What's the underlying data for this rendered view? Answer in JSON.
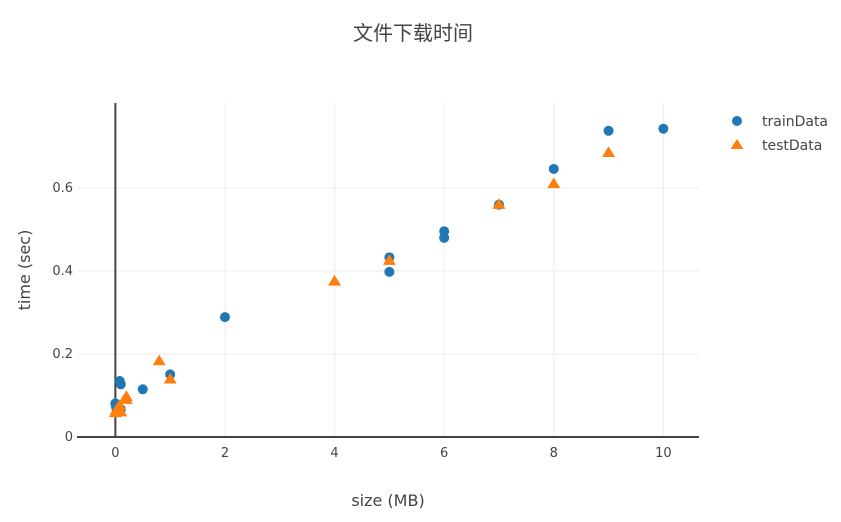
{
  "chart_data": {
    "type": "scatter",
    "title": "文件下载时间",
    "xlabel": "size (MB)",
    "ylabel": "time (sec)",
    "xlim": [
      -0.7,
      10.65
    ],
    "ylim": [
      0,
      0.805
    ],
    "x_ticks": [
      0,
      2,
      4,
      6,
      8,
      10
    ],
    "y_ticks": [
      0,
      0.2,
      0.4,
      0.6
    ],
    "x_tick_labels": [
      "0",
      "2",
      "4",
      "6",
      "8",
      "10"
    ],
    "y_tick_labels": [
      "0",
      "0.2",
      "0.4",
      "0.6"
    ],
    "grid": true,
    "legend_position": "top-right",
    "series": [
      {
        "name": "trainData",
        "marker": "circle",
        "color": "#1f77b4",
        "points": [
          {
            "x": 0.0,
            "y": 0.081
          },
          {
            "x": 0.01,
            "y": 0.074
          },
          {
            "x": 0.02,
            "y": 0.068
          },
          {
            "x": 0.05,
            "y": 0.063
          },
          {
            "x": 0.08,
            "y": 0.135
          },
          {
            "x": 0.1,
            "y": 0.127
          },
          {
            "x": 0.1,
            "y": 0.067
          },
          {
            "x": 0.5,
            "y": 0.115
          },
          {
            "x": 1,
            "y": 0.151
          },
          {
            "x": 2,
            "y": 0.289
          },
          {
            "x": 5,
            "y": 0.433
          },
          {
            "x": 5,
            "y": 0.398
          },
          {
            "x": 6,
            "y": 0.496
          },
          {
            "x": 6,
            "y": 0.48
          },
          {
            "x": 7,
            "y": 0.56
          },
          {
            "x": 8,
            "y": 0.646
          },
          {
            "x": 9,
            "y": 0.738
          },
          {
            "x": 10,
            "y": 0.743
          }
        ]
      },
      {
        "name": "testData",
        "marker": "triangle-up",
        "color": "#ff7f0e",
        "points": [
          {
            "x": 0.0,
            "y": 0.058
          },
          {
            "x": 0.02,
            "y": 0.065
          },
          {
            "x": 0.05,
            "y": 0.07
          },
          {
            "x": 0.08,
            "y": 0.075
          },
          {
            "x": 0.1,
            "y": 0.06
          },
          {
            "x": 0.2,
            "y": 0.09
          },
          {
            "x": 0.2,
            "y": 0.097
          },
          {
            "x": 0.8,
            "y": 0.183
          },
          {
            "x": 1,
            "y": 0.139
          },
          {
            "x": 4,
            "y": 0.375
          },
          {
            "x": 5,
            "y": 0.425
          },
          {
            "x": 7,
            "y": 0.56
          },
          {
            "x": 8,
            "y": 0.61
          },
          {
            "x": 9,
            "y": 0.685
          }
        ]
      }
    ]
  }
}
